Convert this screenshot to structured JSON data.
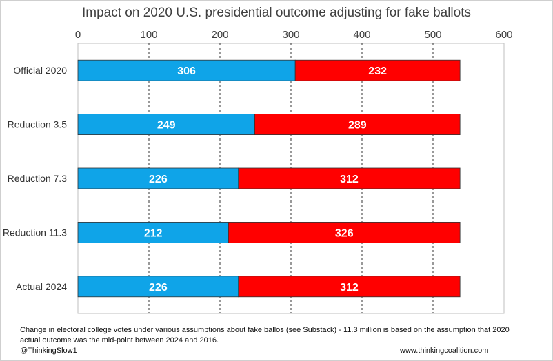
{
  "chart_data": {
    "type": "bar",
    "orientation": "horizontal",
    "stacked": true,
    "title": "Impact on 2020 U.S. presidential outcome adjusting for fake ballots",
    "xlabel": "",
    "ylabel": "",
    "xlim": [
      0,
      600
    ],
    "x_ticks": [
      "0",
      "100",
      "200",
      "300",
      "400",
      "500",
      "600"
    ],
    "x_axis_position": "top",
    "grid": "vertical dashed",
    "categories": [
      "Official 2020",
      "Reduction 3.5",
      "Reduction 7.3",
      "Reduction 11.3",
      "Actual 2024"
    ],
    "series": [
      {
        "color": "#0fa4e8",
        "values": [
          306,
          249,
          226,
          212,
          226
        ]
      },
      {
        "color": "#ff0000",
        "values": [
          232,
          289,
          312,
          326,
          312
        ]
      }
    ],
    "data_labels": true
  },
  "footnote": "Change in electoral college votes under various assumptions about fake ballos (see  Substack) - 11.3 million is based on the assumption that 2020 actual outcome was the mid-point between 2024 and 2016.",
  "handle": "@ThinkingSlow1",
  "website": "www.thinkingcoalition.com"
}
